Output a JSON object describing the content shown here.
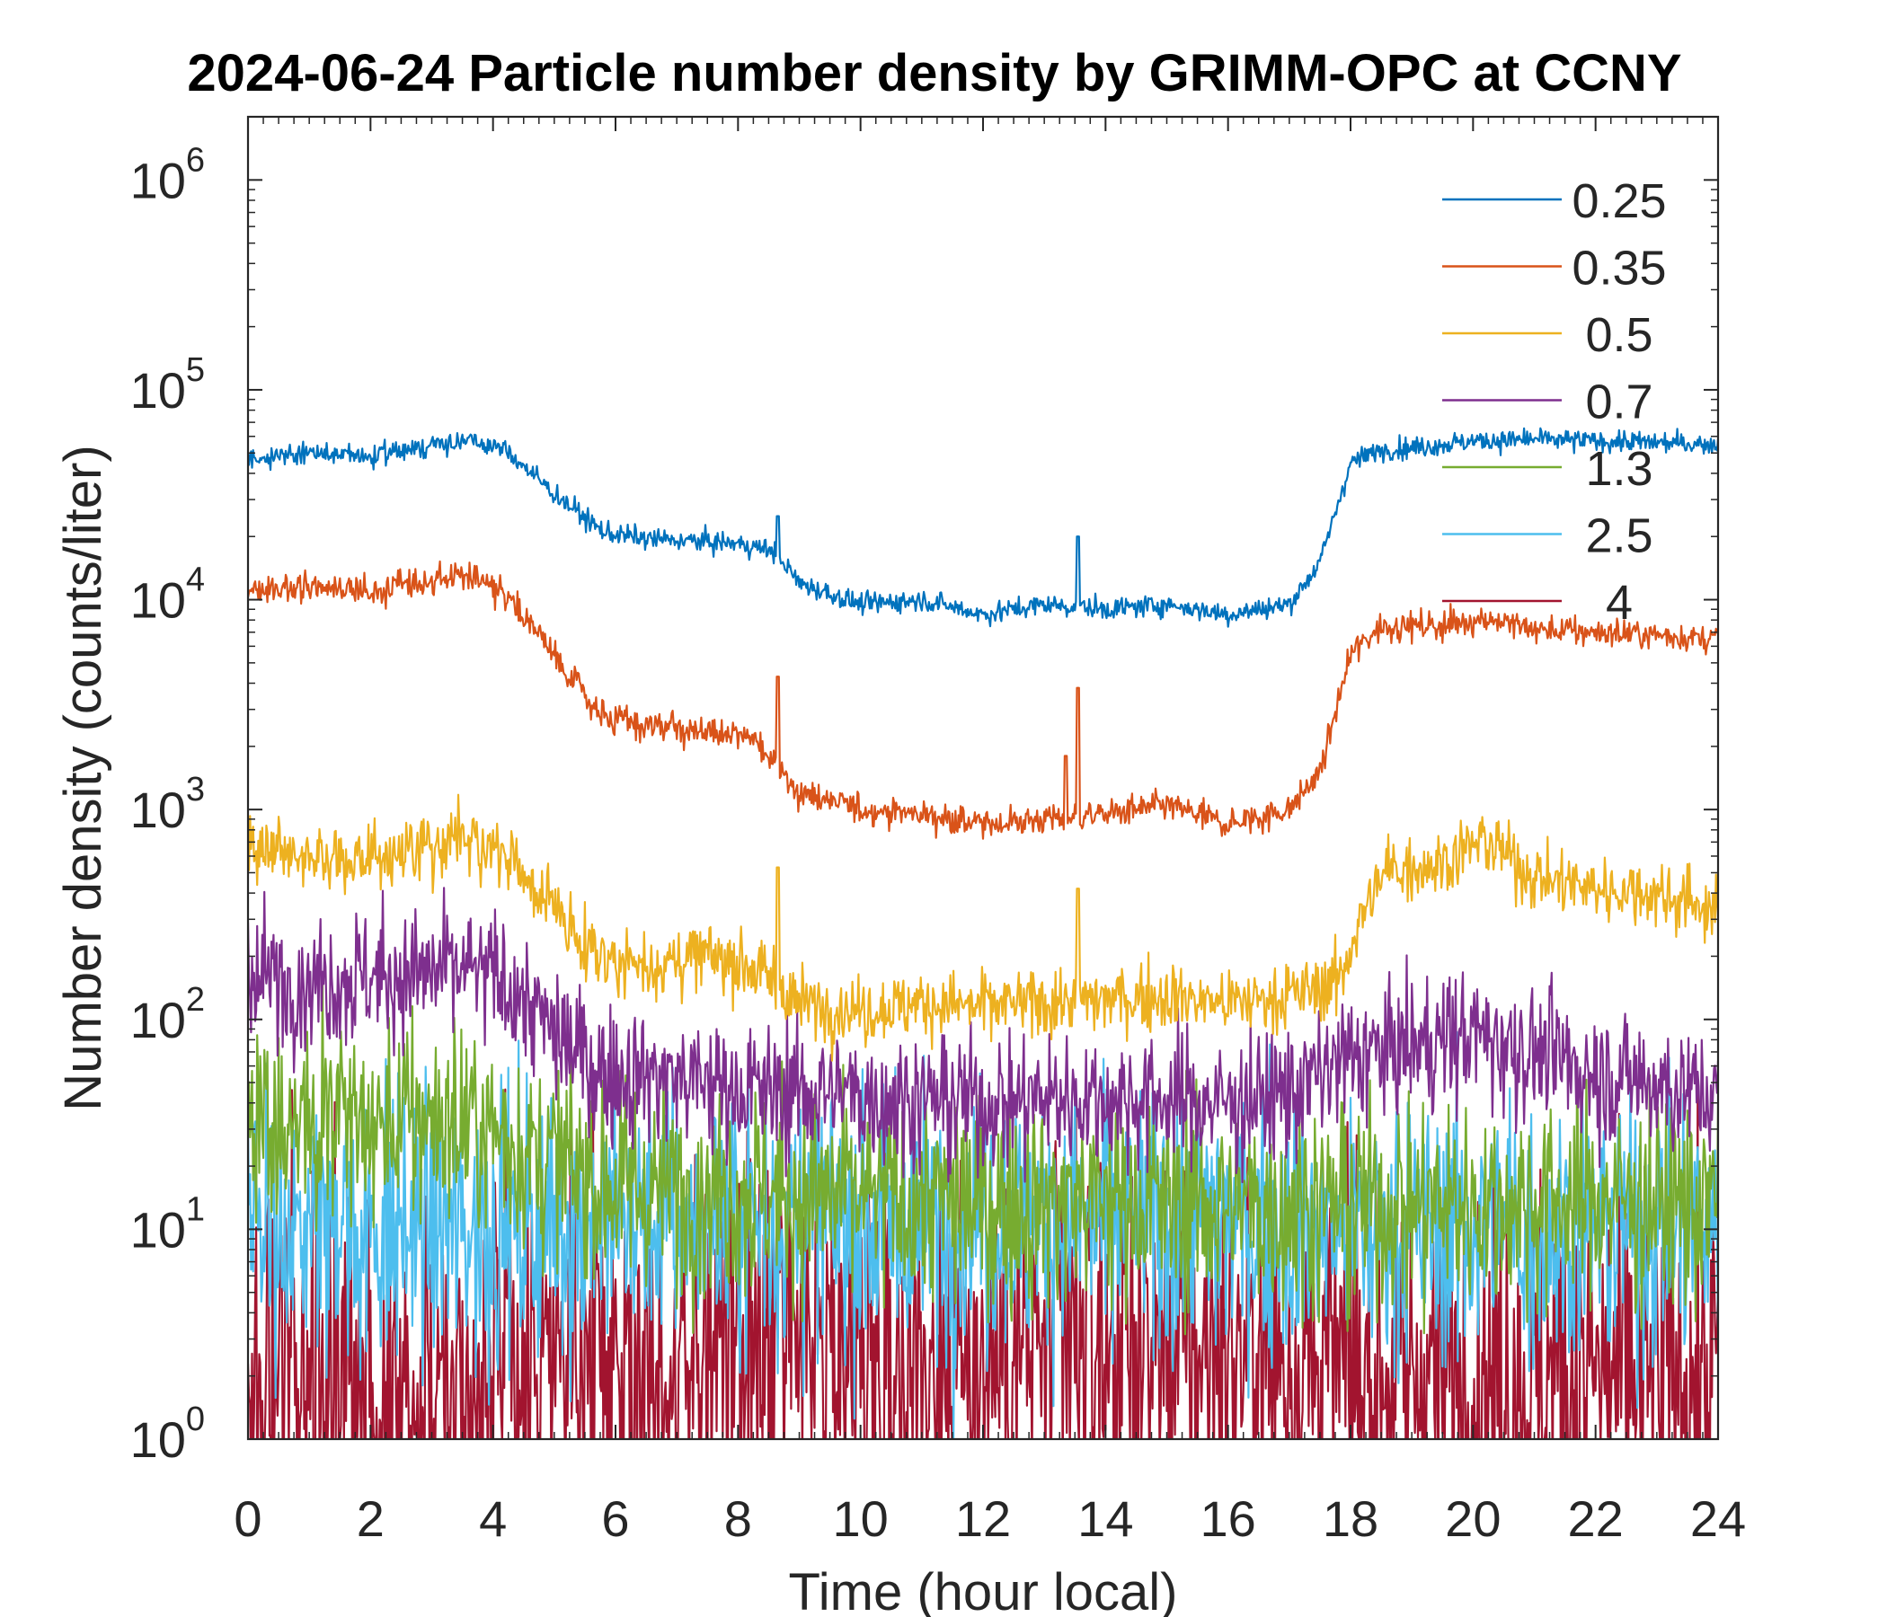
{
  "chart_data": {
    "type": "line",
    "title": "2024-06-24 Particle number density by GRIMM-OPC at CCNY",
    "xlabel": "Time (hour local)",
    "ylabel": "Number density (counts/liter)",
    "xlim": [
      0,
      24
    ],
    "ylim": [
      1,
      2000000
    ],
    "yscale": "log",
    "x_ticks": [
      0,
      2,
      4,
      6,
      8,
      10,
      12,
      14,
      16,
      18,
      20,
      22,
      24
    ],
    "y_ticks": [
      {
        "value": 1,
        "base": "10",
        "exp": "0"
      },
      {
        "value": 10,
        "base": "10",
        "exp": "1"
      },
      {
        "value": 100,
        "base": "10",
        "exp": "2"
      },
      {
        "value": 1000,
        "base": "10",
        "exp": "3"
      },
      {
        "value": 10000,
        "base": "10",
        "exp": "4"
      },
      {
        "value": 100000,
        "base": "10",
        "exp": "5"
      },
      {
        "value": 1000000,
        "base": "10",
        "exp": "6"
      }
    ],
    "legend_position": "top-right",
    "series": [
      {
        "name": "0.25",
        "color": "#0072BD",
        "noise": 0.05,
        "spikes": [
          [
            8.65,
            25000
          ],
          [
            13.55,
            20000
          ]
        ],
        "keypoints": [
          [
            0,
            47000
          ],
          [
            1,
            50000
          ],
          [
            2,
            48000
          ],
          [
            3,
            55000
          ],
          [
            3.6,
            57000
          ],
          [
            4.2,
            52000
          ],
          [
            5,
            32000
          ],
          [
            5.8,
            21000
          ],
          [
            6.5,
            19500
          ],
          [
            7.3,
            19000
          ],
          [
            8,
            18500
          ],
          [
            8.6,
            17000
          ],
          [
            9,
            12000
          ],
          [
            10,
            9500
          ],
          [
            11,
            10000
          ],
          [
            12,
            8500
          ],
          [
            13,
            9500
          ],
          [
            14,
            9000
          ],
          [
            15,
            9500
          ],
          [
            16,
            8500
          ],
          [
            17,
            9500
          ],
          [
            17.5,
            15000
          ],
          [
            18,
            45000
          ],
          [
            18.5,
            52000
          ],
          [
            19,
            53000
          ],
          [
            20,
            57000
          ],
          [
            21,
            58000
          ],
          [
            22,
            57000
          ],
          [
            23,
            56000
          ],
          [
            24,
            55000
          ]
        ]
      },
      {
        "name": "0.35",
        "color": "#D95319",
        "noise": 0.07,
        "spikes": [
          [
            8.65,
            4300
          ],
          [
            13.55,
            3800
          ],
          [
            13.35,
            1800
          ]
        ],
        "keypoints": [
          [
            0,
            11000
          ],
          [
            1,
            11500
          ],
          [
            2,
            11000
          ],
          [
            3,
            12500
          ],
          [
            3.6,
            13000
          ],
          [
            4.2,
            11000
          ],
          [
            5,
            5500
          ],
          [
            5.8,
            2700
          ],
          [
            6.5,
            2500
          ],
          [
            7.3,
            2400
          ],
          [
            8.2,
            2200
          ],
          [
            8.6,
            1700
          ],
          [
            9,
            1200
          ],
          [
            10,
            1000
          ],
          [
            11,
            950
          ],
          [
            12,
            850
          ],
          [
            13,
            900
          ],
          [
            14,
            950
          ],
          [
            15,
            1050
          ],
          [
            16,
            850
          ],
          [
            17,
            1000
          ],
          [
            17.5,
            1500
          ],
          [
            18,
            5500
          ],
          [
            18.5,
            7500
          ],
          [
            19.5,
            7500
          ],
          [
            20.2,
            8200
          ],
          [
            21,
            7200
          ],
          [
            22,
            7000
          ],
          [
            23,
            6800
          ],
          [
            24,
            6500
          ]
        ]
      },
      {
        "name": "0.5",
        "color": "#EDB120",
        "noise": 0.16,
        "spikes": [
          [
            8.65,
            530
          ],
          [
            13.55,
            420
          ]
        ],
        "keypoints": [
          [
            0,
            620
          ],
          [
            1,
            600
          ],
          [
            2,
            580
          ],
          [
            3,
            700
          ],
          [
            3.5,
            720
          ],
          [
            4.2,
            600
          ],
          [
            5,
            330
          ],
          [
            5.8,
            200
          ],
          [
            6.5,
            180
          ],
          [
            7.5,
            200
          ],
          [
            8.2,
            180
          ],
          [
            8.7,
            140
          ],
          [
            9,
            120
          ],
          [
            10,
            110
          ],
          [
            11,
            120
          ],
          [
            12,
            115
          ],
          [
            13,
            120
          ],
          [
            14,
            125
          ],
          [
            15,
            130
          ],
          [
            16,
            120
          ],
          [
            17,
            130
          ],
          [
            17.8,
            150
          ],
          [
            18.2,
            320
          ],
          [
            18.6,
            520
          ],
          [
            19.5,
            560
          ],
          [
            20.2,
            720
          ],
          [
            21,
            480
          ],
          [
            22,
            420
          ],
          [
            23,
            400
          ],
          [
            24,
            330
          ]
        ]
      },
      {
        "name": "0.7",
        "color": "#7E2F8E",
        "noise": 0.32,
        "spikes": [],
        "keypoints": [
          [
            0,
            160
          ],
          [
            1,
            150
          ],
          [
            2,
            160
          ],
          [
            3,
            165
          ],
          [
            3.6,
            170
          ],
          [
            4.2,
            150
          ],
          [
            5,
            85
          ],
          [
            5.8,
            55
          ],
          [
            6.5,
            55
          ],
          [
            7.5,
            50
          ],
          [
            8.5,
            45
          ],
          [
            9.5,
            45
          ],
          [
            10.5,
            42
          ],
          [
            12,
            40
          ],
          [
            13,
            42
          ],
          [
            14,
            42
          ],
          [
            15,
            42
          ],
          [
            16,
            40
          ],
          [
            17,
            45
          ],
          [
            18,
            65
          ],
          [
            19,
            75
          ],
          [
            20,
            85
          ],
          [
            21,
            70
          ],
          [
            22,
            55
          ],
          [
            23,
            50
          ],
          [
            24,
            42
          ]
        ]
      },
      {
        "name": "1.3",
        "color": "#77AC30",
        "noise": 0.5,
        "spikes": [],
        "keypoints": [
          [
            0,
            32
          ],
          [
            2,
            30
          ],
          [
            3,
            34
          ],
          [
            4,
            30
          ],
          [
            5,
            20
          ],
          [
            6,
            16
          ],
          [
            8,
            15
          ],
          [
            10,
            14
          ],
          [
            12,
            13
          ],
          [
            14,
            14
          ],
          [
            16,
            13
          ],
          [
            18,
            13
          ],
          [
            20,
            13
          ],
          [
            22,
            14
          ],
          [
            24,
            13
          ]
        ]
      },
      {
        "name": "2.5",
        "color": "#4DBEEE",
        "noise": 0.65,
        "spikes": [],
        "keypoints": [
          [
            0,
            10
          ],
          [
            4,
            10
          ],
          [
            6,
            11
          ],
          [
            8,
            11
          ],
          [
            10,
            11
          ],
          [
            12,
            11
          ],
          [
            14,
            11
          ],
          [
            16,
            11
          ],
          [
            18,
            10
          ],
          [
            20,
            10
          ],
          [
            22,
            10
          ],
          [
            24,
            10
          ]
        ]
      },
      {
        "name": "4",
        "color": "#A2142F",
        "noise": 0.9,
        "spikes": [],
        "keypoints": [
          [
            0,
            2
          ],
          [
            4,
            2
          ],
          [
            6,
            2.2
          ],
          [
            8,
            2.5
          ],
          [
            10,
            2.6
          ],
          [
            12,
            2.5
          ],
          [
            14,
            2.8
          ],
          [
            16,
            2.6
          ],
          [
            18,
            2.2
          ],
          [
            20,
            2
          ],
          [
            22,
            2
          ],
          [
            24,
            2
          ]
        ]
      }
    ]
  }
}
